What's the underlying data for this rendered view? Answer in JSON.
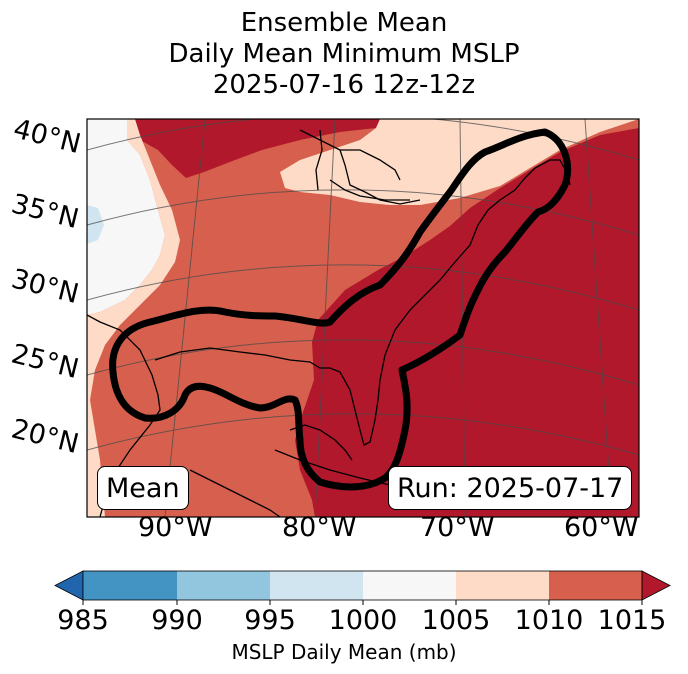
{
  "title": {
    "line1": "Ensemble Mean",
    "line2": "Daily Mean Minimum MSLP",
    "line3": "2025-07-16 12z-12z"
  },
  "map": {
    "lat_labels": [
      "40°N",
      "35°N",
      "30°N",
      "25°N",
      "20°N"
    ],
    "lon_labels": [
      "90°W",
      "80°W",
      "70°W",
      "60°W"
    ],
    "mean_box": "Mean",
    "run_box": "Run: 2025-07-17"
  },
  "colorbar": {
    "ticks": [
      "985",
      "990",
      "995",
      "1000",
      "1005",
      "1010",
      "1015"
    ],
    "label": "MSLP Daily Mean (mb)",
    "colors": {
      "below_985": "#2166ac",
      "985_990": "#4393c3",
      "990_995": "#92c5de",
      "995_1000": "#d1e5f0",
      "1000_1005": "#f7f7f7",
      "1005_1010": "#fddbc7",
      "1010_1015": "#d6604d",
      "above_1015": "#b2182b"
    }
  }
}
